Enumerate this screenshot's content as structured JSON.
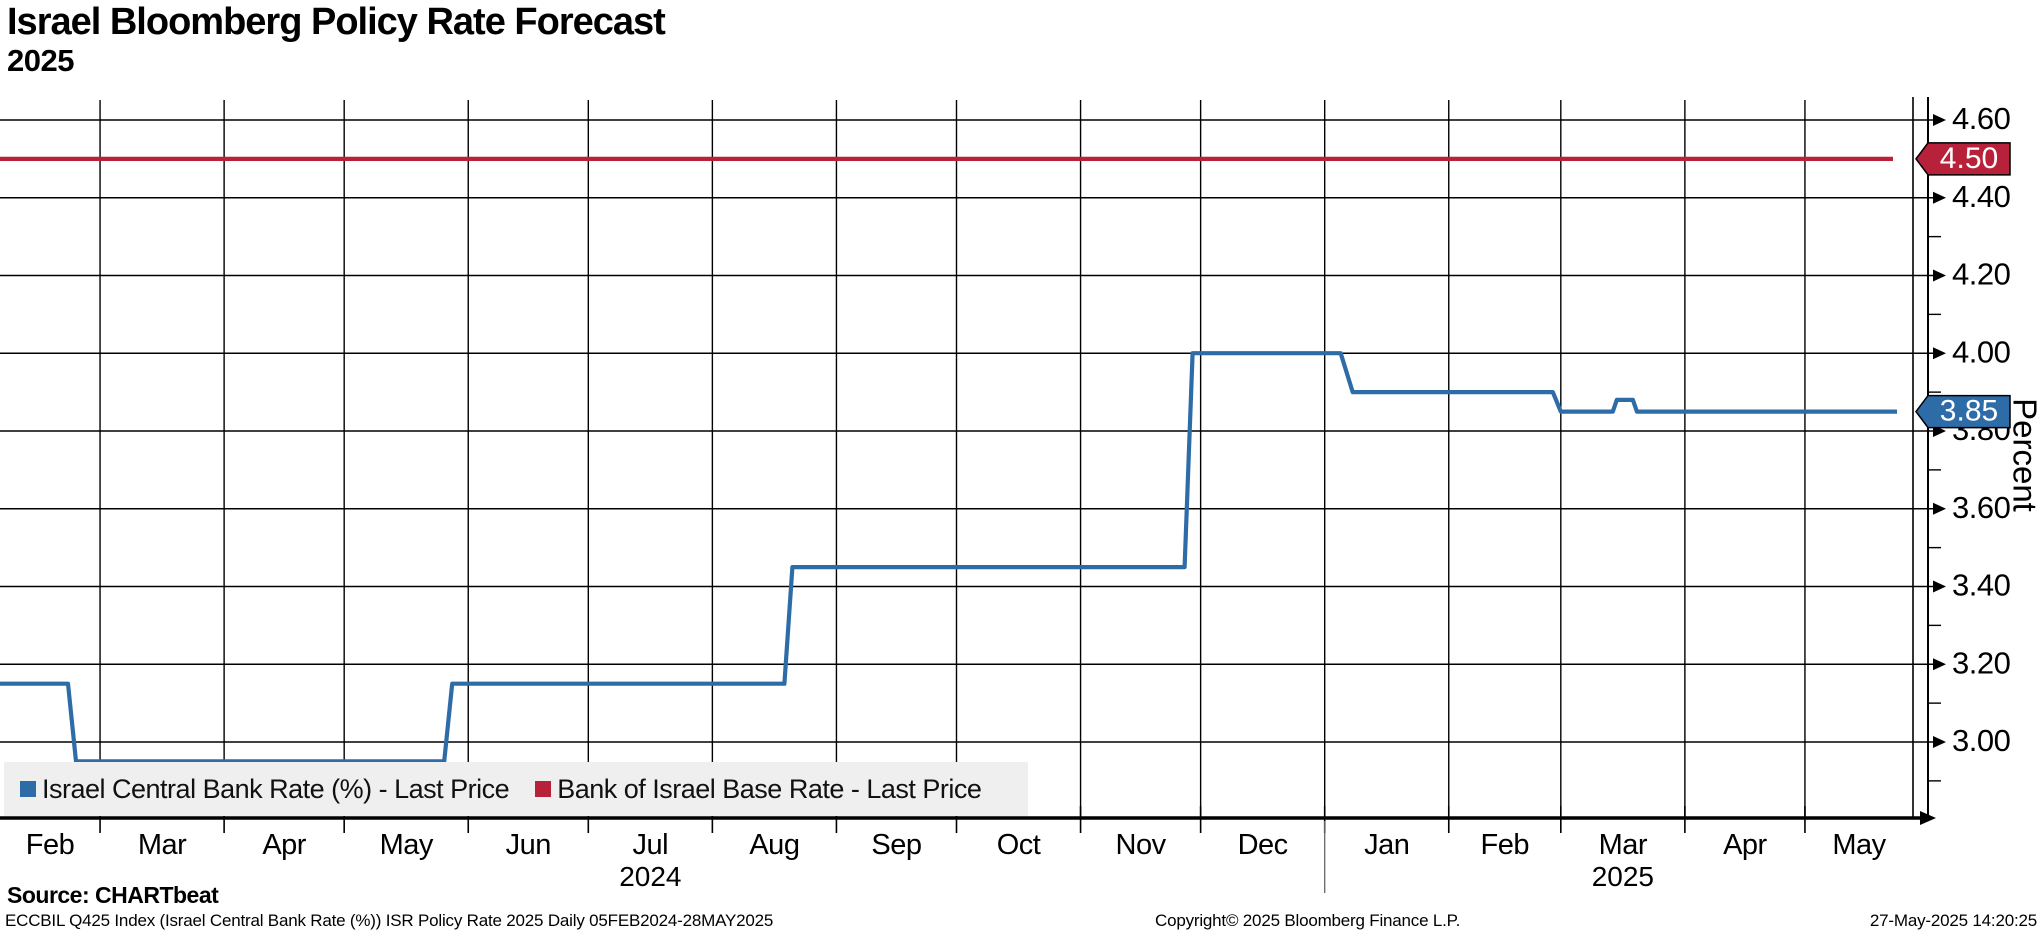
{
  "header": {
    "title": "Israel Bloomberg Policy Rate Forecast",
    "subtitle": "2025"
  },
  "legend": {
    "items": [
      {
        "label": "Israel Central Bank Rate (%) - Last Price",
        "color": "#2e6ca8"
      },
      {
        "label": "Bank of Israel Base Rate - Last Price",
        "color": "#b8213a"
      }
    ]
  },
  "footer": {
    "source": "Source: CHARTbeat",
    "note": "ECCBIL Q425 Index (Israel Central Bank Rate (%)) ISR Policy Rate 2025  Daily 05FEB2024-28MAY2025",
    "copyright": "Copyright© 2025 Bloomberg Finance L.P.",
    "timestamp": "27-May-2025 14:20:25"
  },
  "chart_data": {
    "type": "line",
    "title": "Israel Bloomberg Policy Rate Forecast 2025",
    "ylabel": "Percent",
    "x_range_days": 478,
    "x_start_date": "05FEB2024",
    "x_end_date": "28MAY2025",
    "months": {
      "labels": [
        "Feb",
        "Mar",
        "Apr",
        "May",
        "Jun",
        "Jul",
        "Aug",
        "Sep",
        "Oct",
        "Nov",
        "Dec",
        "Jan",
        "Feb",
        "Mar",
        "Apr",
        "May"
      ],
      "boundaries_days": [
        0,
        25,
        56,
        86,
        117,
        147,
        178,
        209,
        239,
        270,
        300,
        331,
        362,
        390,
        421,
        451,
        478
      ],
      "year_labels": [
        {
          "label": "2024",
          "month_index": 5
        },
        {
          "label": "2025",
          "month_index": 13
        }
      ],
      "year_separator_day": 331
    },
    "y_axis": {
      "label": "Percent",
      "range": [
        2.8,
        4.65
      ],
      "major_ticks": [
        3.0,
        3.2,
        3.4,
        3.6,
        3.8,
        4.0,
        4.2,
        4.4,
        4.6
      ],
      "minor_ticks": [
        2.9,
        3.1,
        3.3,
        3.5,
        3.7,
        3.9,
        4.1,
        4.3,
        4.5
      ],
      "grid": true
    },
    "badges": [
      {
        "text": "4.50",
        "value": 4.5,
        "color": "#b8213a"
      },
      {
        "text": "3.85",
        "value": 3.85,
        "color": "#2e6ca8"
      }
    ],
    "series": [
      {
        "name": "Israel Central Bank Rate (%) - Last Price",
        "color": "#2e6ca8",
        "last_value": 3.85,
        "points_day_value": [
          [
            0,
            3.15
          ],
          [
            17,
            3.15
          ],
          [
            19,
            2.95
          ],
          [
            111,
            2.95
          ],
          [
            113,
            3.15
          ],
          [
            196,
            3.15
          ],
          [
            198,
            3.45
          ],
          [
            296,
            3.45
          ],
          [
            298,
            4.0
          ],
          [
            335,
            4.0
          ],
          [
            338,
            3.9
          ],
          [
            388,
            3.9
          ],
          [
            390,
            3.85
          ],
          [
            403,
            3.85
          ],
          [
            404,
            3.88
          ],
          [
            408,
            3.88
          ],
          [
            409,
            3.85
          ],
          [
            474,
            3.85
          ]
        ]
      },
      {
        "name": "Bank of Israel Base Rate - Last Price",
        "color": "#b8213a",
        "last_value": 4.5,
        "points_day_value": [
          [
            0,
            4.5
          ],
          [
            473,
            4.5
          ]
        ]
      }
    ]
  }
}
